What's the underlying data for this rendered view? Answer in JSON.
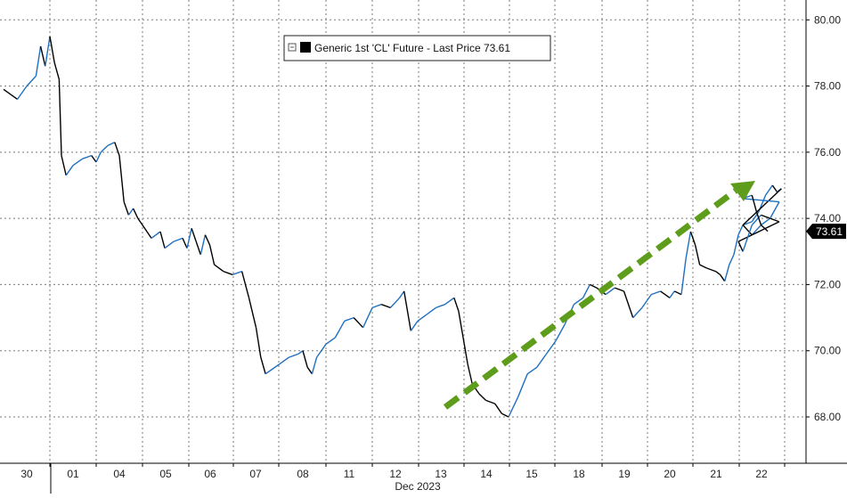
{
  "chart_data": {
    "type": "line",
    "title": "",
    "xlabel": "Dec 2023",
    "ylabel": "",
    "ylim": [
      66.6,
      80.6
    ],
    "yticks": [
      "68.00",
      "70.00",
      "72.00",
      "74.00",
      "76.00",
      "78.00",
      "80.00"
    ],
    "x_tick_labels": [
      "30",
      "01",
      "04",
      "05",
      "06",
      "07",
      "08",
      "11",
      "12",
      "13",
      "14",
      "15",
      "18",
      "19",
      "20",
      "21",
      "22"
    ],
    "grid": true,
    "legend": {
      "placement": "top-center",
      "entries": [
        "Generic 1st 'CL' Future - Last Price 73.61"
      ]
    },
    "last_price_label": "73.61",
    "colors": {
      "line_up": "#1f6fbf",
      "line_down": "#000000",
      "trend_arrow": "#5e9c1c",
      "last_price_box": "#000000"
    },
    "series": [
      {
        "name": "Generic 1st 'CL' Future - Last Price 73.61",
        "points": [
          [
            0.0,
            77.9
          ],
          [
            0.3,
            77.6
          ],
          [
            0.5,
            78.0
          ],
          [
            0.7,
            78.3
          ],
          [
            0.8,
            79.2
          ],
          [
            0.9,
            78.6
          ],
          [
            1.0,
            79.5
          ],
          [
            1.1,
            78.7
          ],
          [
            1.2,
            78.2
          ],
          [
            1.25,
            75.9
          ],
          [
            1.35,
            75.3
          ],
          [
            1.5,
            75.6
          ],
          [
            1.7,
            75.8
          ],
          [
            1.9,
            75.9
          ],
          [
            2.0,
            75.7
          ],
          [
            2.1,
            76.0
          ],
          [
            2.25,
            76.2
          ],
          [
            2.4,
            76.3
          ],
          [
            2.5,
            75.9
          ],
          [
            2.6,
            74.5
          ],
          [
            2.7,
            74.1
          ],
          [
            2.8,
            74.3
          ],
          [
            2.9,
            74.0
          ],
          [
            3.0,
            73.8
          ],
          [
            3.2,
            73.4
          ],
          [
            3.4,
            73.6
          ],
          [
            3.5,
            73.1
          ],
          [
            3.7,
            73.3
          ],
          [
            3.9,
            73.4
          ],
          [
            4.0,
            73.1
          ],
          [
            4.1,
            73.7
          ],
          [
            4.2,
            73.3
          ],
          [
            4.3,
            72.9
          ],
          [
            4.4,
            73.5
          ],
          [
            4.5,
            73.2
          ],
          [
            4.6,
            72.6
          ],
          [
            4.8,
            72.4
          ],
          [
            5.0,
            72.3
          ],
          [
            5.2,
            72.4
          ],
          [
            5.35,
            71.6
          ],
          [
            5.5,
            70.7
          ],
          [
            5.6,
            69.8
          ],
          [
            5.7,
            69.3
          ],
          [
            5.8,
            69.4
          ],
          [
            6.0,
            69.6
          ],
          [
            6.2,
            69.8
          ],
          [
            6.4,
            69.9
          ],
          [
            6.5,
            70.0
          ],
          [
            6.6,
            69.5
          ],
          [
            6.7,
            69.3
          ],
          [
            6.8,
            69.8
          ],
          [
            7.0,
            70.2
          ],
          [
            7.2,
            70.4
          ],
          [
            7.4,
            70.9
          ],
          [
            7.6,
            71.0
          ],
          [
            7.8,
            70.7
          ],
          [
            8.0,
            71.3
          ],
          [
            8.2,
            71.4
          ],
          [
            8.4,
            71.3
          ],
          [
            8.6,
            71.6
          ],
          [
            8.7,
            71.8
          ],
          [
            8.85,
            70.6
          ],
          [
            9.0,
            70.9
          ],
          [
            9.2,
            71.1
          ],
          [
            9.4,
            71.3
          ],
          [
            9.6,
            71.4
          ],
          [
            9.8,
            71.6
          ],
          [
            9.9,
            71.2
          ],
          [
            10.1,
            69.6
          ],
          [
            10.2,
            69.0
          ],
          [
            10.35,
            68.7
          ],
          [
            10.5,
            68.5
          ],
          [
            10.7,
            68.4
          ],
          [
            10.85,
            68.1
          ],
          [
            11.0,
            68.0
          ],
          [
            11.2,
            68.6
          ],
          [
            11.4,
            69.3
          ],
          [
            11.6,
            69.5
          ],
          [
            11.8,
            69.9
          ],
          [
            12.0,
            70.3
          ],
          [
            12.2,
            70.8
          ],
          [
            12.4,
            71.4
          ],
          [
            12.6,
            71.6
          ],
          [
            12.75,
            72.0
          ],
          [
            12.9,
            71.9
          ],
          [
            13.1,
            71.7
          ],
          [
            13.3,
            71.9
          ],
          [
            13.5,
            71.8
          ],
          [
            13.7,
            71.0
          ],
          [
            13.9,
            71.3
          ],
          [
            14.1,
            71.7
          ],
          [
            14.3,
            71.8
          ],
          [
            14.5,
            71.6
          ],
          [
            14.6,
            71.8
          ],
          [
            14.75,
            71.7
          ],
          [
            14.85,
            72.8
          ],
          [
            14.95,
            73.6
          ],
          [
            15.05,
            73.2
          ],
          [
            15.15,
            72.6
          ],
          [
            15.3,
            72.5
          ],
          [
            15.5,
            72.4
          ],
          [
            15.6,
            72.3
          ],
          [
            15.7,
            72.1
          ],
          [
            15.8,
            72.6
          ],
          [
            15.9,
            72.9
          ],
          [
            16.0,
            73.5
          ],
          [
            16.1,
            73.8
          ],
          [
            16.3,
            73.9
          ],
          [
            16.45,
            74.2
          ],
          [
            16.6,
            74.7
          ],
          [
            16.75,
            75.0
          ],
          [
            16.85,
            74.8
          ],
          [
            16.95,
            74.9
          ],
          [
            17.1,
            73.8
          ],
          [
            17.3,
            73.5
          ],
          [
            17.5,
            73.8
          ],
          [
            17.7,
            74.0
          ],
          [
            17.9,
            73.9
          ],
          [
            18.0,
            73.3
          ],
          [
            18.1,
            73.0
          ],
          [
            18.3,
            73.8
          ],
          [
            18.5,
            74.1
          ],
          [
            18.7,
            74.0
          ],
          [
            18.9,
            74.5
          ],
          [
            19.1,
            74.6
          ],
          [
            19.3,
            74.7
          ],
          [
            19.4,
            74.2
          ],
          [
            19.5,
            73.8
          ],
          [
            19.65,
            73.61
          ]
        ]
      }
    ]
  }
}
